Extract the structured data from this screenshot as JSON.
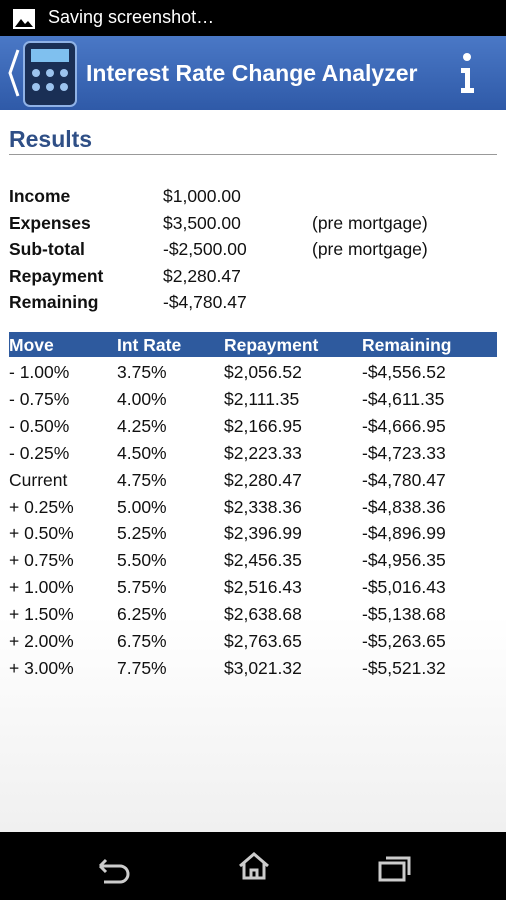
{
  "status_bar": {
    "text": "Saving screenshot…"
  },
  "app_bar": {
    "title": "Interest Rate Change Analyzer"
  },
  "results": {
    "heading": "Results",
    "summary": [
      {
        "label": "Income",
        "value": "$1,000.00"
      },
      {
        "label": "Expenses",
        "value": "$3,500.00",
        "note": "(pre mortgage)"
      },
      {
        "label": "Sub-total",
        "value": "-$2,500.00",
        "note": "(pre mortgage)"
      },
      {
        "label": "Repayment",
        "value": "$2,280.47"
      },
      {
        "label": "Remaining",
        "value": "-$4,780.47"
      }
    ]
  },
  "table": {
    "columns": [
      "Move",
      "Int Rate",
      "Repayment",
      "Remaining"
    ],
    "rows": [
      [
        "- 1.00%",
        "3.75%",
        "$2,056.52",
        "-$4,556.52"
      ],
      [
        "- 0.75%",
        "4.00%",
        "$2,111.35",
        "-$4,611.35"
      ],
      [
        "- 0.50%",
        "4.25%",
        "$2,166.95",
        "-$4,666.95"
      ],
      [
        "- 0.25%",
        "4.50%",
        "$2,223.33",
        "-$4,723.33"
      ],
      [
        "Current",
        "4.75%",
        "$2,280.47",
        "-$4,780.47"
      ],
      [
        "+ 0.25%",
        "5.00%",
        "$2,338.36",
        "-$4,838.36"
      ],
      [
        "+ 0.50%",
        "5.25%",
        "$2,396.99",
        "-$4,896.99"
      ],
      [
        "+ 0.75%",
        "5.50%",
        "$2,456.35",
        "-$4,956.35"
      ],
      [
        "+ 1.00%",
        "5.75%",
        "$2,516.43",
        "-$5,016.43"
      ],
      [
        "+ 1.50%",
        "6.25%",
        "$2,638.68",
        "-$5,138.68"
      ],
      [
        "+ 2.00%",
        "6.75%",
        "$2,763.65",
        "-$5,263.65"
      ],
      [
        "+ 3.00%",
        "7.75%",
        "$3,021.32",
        "-$5,521.32"
      ]
    ]
  }
}
